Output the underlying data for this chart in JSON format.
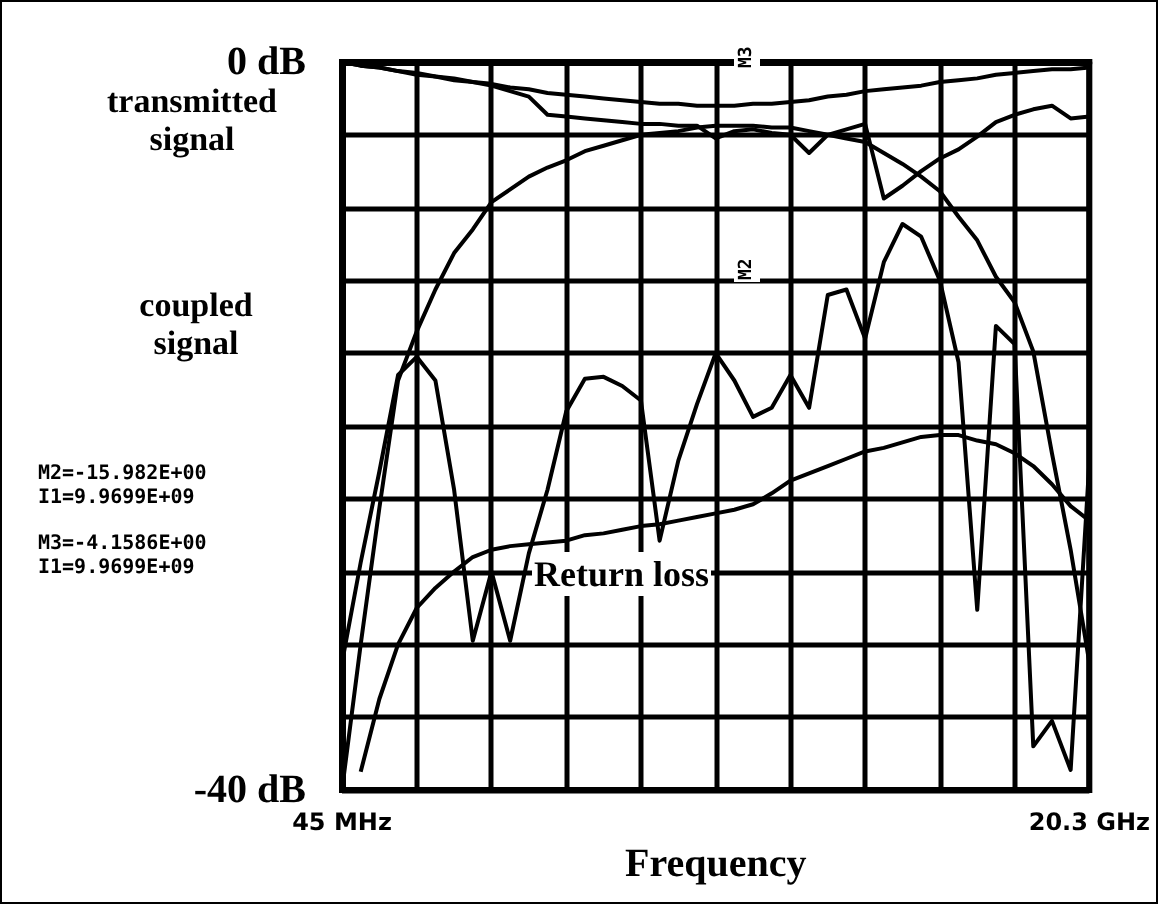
{
  "chart_data": {
    "type": "line",
    "xlabel": "Frequency",
    "categories": [
      "45 MHz",
      null,
      null,
      null,
      null,
      null,
      null,
      null,
      null,
      null,
      null,
      null,
      null,
      null,
      null,
      null,
      null,
      null,
      null,
      null,
      null,
      null,
      null,
      null,
      null,
      null,
      null,
      null,
      null,
      null,
      null,
      null,
      null,
      null,
      null,
      null,
      null,
      null,
      null,
      null,
      "20.3 GHz"
    ],
    "ylim": [
      -40,
      0
    ],
    "yticks": [
      {
        "value": -40,
        "label": "-40 dB"
      },
      {
        "value": -36,
        "label": null
      },
      {
        "value": -32,
        "label": null
      },
      {
        "value": -28,
        "label": null
      },
      {
        "value": -24,
        "label": null
      },
      {
        "value": -20,
        "label": null
      },
      {
        "value": -16,
        "label": null
      },
      {
        "value": -12,
        "label": null
      },
      {
        "value": -8,
        "label": null
      },
      {
        "value": -4,
        "label": null
      },
      {
        "value": 0,
        "label": "0 dB"
      }
    ],
    "grid": true,
    "annotations": [
      "transmitted\nsignal",
      "coupled\nsignal",
      "Return loss",
      "M2=-15.982E+00\nI1=9.9699E+09",
      "M3=-4.1586E+00\nI1=9.9699E+09",
      "M2",
      "M3"
    ],
    "series": [
      {
        "color": "#000000",
        "values": [
          0,
          -0.2,
          -0.3,
          -0.5,
          -0.6,
          -0.8,
          -0.9,
          -1.1,
          -1.2,
          -1.4,
          -1.5,
          -1.7,
          -1.8,
          -1.9,
          -2.0,
          -2.1,
          -2.2,
          -2.3,
          -2.3,
          -2.4,
          -2.4,
          -2.4,
          -2.3,
          -2.3,
          -2.2,
          -2.1,
          -1.9,
          -1.8,
          -1.6,
          -1.5,
          -1.4,
          -1.3,
          -1.1,
          -1.0,
          -0.9,
          -0.7,
          -0.6,
          -0.5,
          -0.4,
          -0.4,
          -0.3
        ]
      },
      {
        "color": "#000000",
        "values": [
          0,
          -0.2,
          -0.3,
          -0.5,
          -0.7,
          -0.8,
          -1.0,
          -1.1,
          -1.3,
          -1.6,
          -1.9,
          -2.9,
          -3.0,
          -3.1,
          -3.2,
          -3.3,
          -3.4,
          -3.4,
          -3.5,
          -3.5,
          -4.2,
          -3.8,
          -3.7,
          -3.9,
          -4.0,
          -5.0,
          -4.0,
          -3.7,
          -3.4,
          -7.5,
          -6.8,
          -6.0,
          -5.3,
          -4.8,
          -4.1,
          -3.3,
          -2.9,
          -2.6,
          -2.4,
          -3.1,
          -3.0
        ]
      },
      {
        "color": "#000000",
        "values": [
          -40,
          -32,
          -24.5,
          -17.5,
          -14.8,
          -12.5,
          -10.5,
          -9.2,
          -7.7,
          -7.0,
          -6.3,
          -5.8,
          -5.4,
          -4.9,
          -4.6,
          -4.3,
          -4.0,
          -3.9,
          -3.8,
          -3.6,
          -3.5,
          -3.5,
          -3.5,
          -3.6,
          -3.6,
          -3.8,
          -4.0,
          -4.2,
          -4.4,
          -5.0,
          -5.6,
          -6.3,
          -7.1,
          -8.5,
          -9.8,
          -11.8,
          -13.2,
          -15.9,
          -21.5,
          -26.8,
          -33
        ]
      },
      {
        "color": "#000000",
        "values": [
          null,
          -39,
          -35,
          -32,
          -30,
          -28.9,
          -28.0,
          -27.2,
          -26.8,
          -26.6,
          -26.5,
          -26.4,
          -26.3,
          -26.0,
          -25.9,
          -25.7,
          -25.5,
          -25.4,
          -25.2,
          -25.0,
          -24.8,
          -24.6,
          -24.3,
          -23.7,
          -23.0,
          -22.6,
          -22.2,
          -21.8,
          -21.4,
          -21.2,
          -20.9,
          -20.6,
          -20.5,
          -20.5,
          -20.8,
          -21.0,
          -21.5,
          -22.2,
          -23.2,
          -24.4,
          -25.2
        ]
      },
      {
        "color": "#000000",
        "values": [
          -33,
          -27.5,
          -22.5,
          -17.2,
          -16.2,
          -17.5,
          -23.5,
          -31.8,
          -28,
          -31.8,
          -27,
          -23.5,
          -19.2,
          -17.4,
          -17.3,
          -17.8,
          -18.6,
          -26.3,
          -21.9,
          -18.8,
          -16.0,
          -17.5,
          -19.5,
          -19.0,
          -17.2,
          -19.0,
          -12.8,
          -12.5,
          -15.2,
          -11,
          -8.9,
          -9.6,
          -12.0,
          -16.5,
          -30.1,
          -14.5,
          -15.5,
          -37.6,
          -36.2,
          -38.9,
          -22
        ]
      }
    ]
  }
}
